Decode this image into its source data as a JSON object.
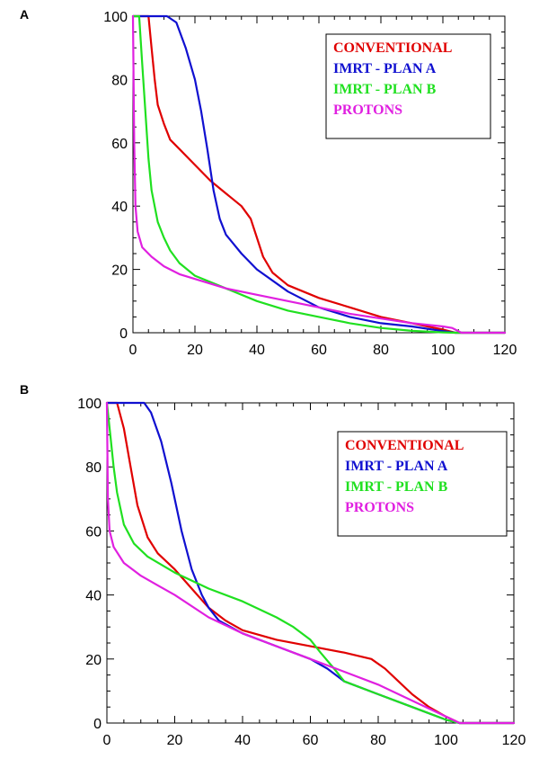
{
  "chart_data": [
    {
      "type": "line",
      "panel_label": "A",
      "xlim": [
        0,
        120
      ],
      "ylim": [
        0,
        100
      ],
      "x_ticks": [
        0,
        20,
        40,
        60,
        80,
        100,
        120
      ],
      "y_ticks": [
        0,
        20,
        40,
        60,
        80,
        100
      ],
      "x_tick_labels": [
        "0",
        "20",
        "40",
        "60",
        "80",
        "100",
        "120"
      ],
      "y_tick_labels": [
        "0",
        "20",
        "40",
        "60",
        "80",
        "100"
      ],
      "legend_position": "top-right",
      "series": [
        {
          "name": "CONVENTIONAL",
          "color": "#e00000",
          "points": [
            [
              0,
              100
            ],
            [
              5,
              100
            ],
            [
              6,
              90
            ],
            [
              7,
              80
            ],
            [
              8,
              72
            ],
            [
              10,
              66
            ],
            [
              12,
              61
            ],
            [
              15,
              58
            ],
            [
              20,
              53
            ],
            [
              25,
              48
            ],
            [
              30,
              44
            ],
            [
              35,
              40
            ],
            [
              38,
              36
            ],
            [
              40,
              30
            ],
            [
              42,
              24
            ],
            [
              45,
              19
            ],
            [
              50,
              15
            ],
            [
              60,
              11
            ],
            [
              70,
              8
            ],
            [
              80,
              5
            ],
            [
              90,
              3
            ],
            [
              100,
              1
            ],
            [
              104,
              0
            ],
            [
              120,
              0
            ]
          ]
        },
        {
          "name": "IMRT - PLAN A",
          "color": "#1010d0",
          "points": [
            [
              0,
              100
            ],
            [
              11,
              100
            ],
            [
              14,
              98
            ],
            [
              17,
              90
            ],
            [
              20,
              80
            ],
            [
              22,
              70
            ],
            [
              24,
              58
            ],
            [
              26,
              45
            ],
            [
              28,
              36
            ],
            [
              30,
              31
            ],
            [
              35,
              25
            ],
            [
              40,
              20
            ],
            [
              50,
              13
            ],
            [
              60,
              8
            ],
            [
              70,
              5
            ],
            [
              80,
              3
            ],
            [
              90,
              2
            ],
            [
              100,
              0.5
            ],
            [
              104,
              0
            ],
            [
              120,
              0
            ]
          ]
        },
        {
          "name": "IMRT - PLAN B",
          "color": "#20e020",
          "points": [
            [
              0,
              100
            ],
            [
              2,
              100
            ],
            [
              3,
              85
            ],
            [
              4,
              70
            ],
            [
              5,
              55
            ],
            [
              6,
              45
            ],
            [
              8,
              35
            ],
            [
              10,
              30
            ],
            [
              12,
              26
            ],
            [
              15,
              22
            ],
            [
              20,
              18
            ],
            [
              30,
              14
            ],
            [
              40,
              10
            ],
            [
              50,
              7
            ],
            [
              60,
              5
            ],
            [
              70,
              3
            ],
            [
              80,
              1.5
            ],
            [
              90,
              0.6
            ],
            [
              100,
              0.1
            ],
            [
              104,
              0
            ],
            [
              120,
              0
            ]
          ]
        },
        {
          "name": "PROTONS",
          "color": "#e020e0",
          "points": [
            [
              0,
              100
            ],
            [
              0.4,
              60
            ],
            [
              0.8,
              40
            ],
            [
              1.5,
              32
            ],
            [
              3,
              27
            ],
            [
              6,
              24
            ],
            [
              10,
              21
            ],
            [
              15,
              18.5
            ],
            [
              20,
              17
            ],
            [
              30,
              14
            ],
            [
              40,
              12
            ],
            [
              50,
              10
            ],
            [
              60,
              8
            ],
            [
              70,
              6
            ],
            [
              80,
              4.5
            ],
            [
              90,
              3
            ],
            [
              100,
              2
            ],
            [
              103,
              1.5
            ],
            [
              106,
              0
            ],
            [
              120,
              0
            ]
          ]
        }
      ]
    },
    {
      "type": "line",
      "panel_label": "B",
      "xlim": [
        0,
        120
      ],
      "ylim": [
        0,
        100
      ],
      "x_ticks": [
        0,
        20,
        40,
        60,
        80,
        100,
        120
      ],
      "y_ticks": [
        0,
        20,
        40,
        60,
        80,
        100
      ],
      "x_tick_labels": [
        "0",
        "20",
        "40",
        "60",
        "80",
        "100",
        "120"
      ],
      "y_tick_labels": [
        "0",
        "20",
        "40",
        "60",
        "80",
        "100"
      ],
      "legend_position": "top-right",
      "series": [
        {
          "name": "CONVENTIONAL",
          "color": "#e00000",
          "points": [
            [
              0,
              100
            ],
            [
              3,
              100
            ],
            [
              5,
              92
            ],
            [
              7,
              80
            ],
            [
              9,
              68
            ],
            [
              12,
              58
            ],
            [
              15,
              53
            ],
            [
              20,
              48
            ],
            [
              25,
              42
            ],
            [
              30,
              36
            ],
            [
              35,
              32
            ],
            [
              40,
              29
            ],
            [
              50,
              26
            ],
            [
              60,
              24
            ],
            [
              70,
              22
            ],
            [
              78,
              20
            ],
            [
              82,
              17
            ],
            [
              86,
              13
            ],
            [
              90,
              9
            ],
            [
              95,
              5
            ],
            [
              100,
              2
            ],
            [
              104,
              0
            ],
            [
              120,
              0
            ]
          ]
        },
        {
          "name": "IMRT - PLAN A",
          "color": "#1010d0",
          "points": [
            [
              0,
              100
            ],
            [
              11,
              100
            ],
            [
              13,
              97
            ],
            [
              16,
              88
            ],
            [
              19,
              75
            ],
            [
              22,
              60
            ],
            [
              25,
              48
            ],
            [
              28,
              40
            ],
            [
              30,
              36
            ],
            [
              33,
              32
            ],
            [
              40,
              28
            ],
            [
              50,
              24
            ],
            [
              60,
              20
            ],
            [
              65,
              17
            ],
            [
              70,
              13
            ],
            [
              80,
              9
            ],
            [
              90,
              5
            ],
            [
              100,
              1
            ],
            [
              104,
              0
            ],
            [
              120,
              0
            ]
          ]
        },
        {
          "name": "IMRT - PLAN B",
          "color": "#20e020",
          "points": [
            [
              0,
              100
            ],
            [
              1,
              90
            ],
            [
              2,
              80
            ],
            [
              3,
              72
            ],
            [
              5,
              62
            ],
            [
              8,
              56
            ],
            [
              12,
              52
            ],
            [
              20,
              47
            ],
            [
              30,
              42
            ],
            [
              40,
              38
            ],
            [
              50,
              33
            ],
            [
              55,
              30
            ],
            [
              60,
              26
            ],
            [
              63,
              22
            ],
            [
              67,
              17
            ],
            [
              70,
              13
            ],
            [
              80,
              9
            ],
            [
              90,
              5
            ],
            [
              100,
              1
            ],
            [
              104,
              0
            ],
            [
              120,
              0
            ]
          ]
        },
        {
          "name": "PROTONS",
          "color": "#e020e0",
          "points": [
            [
              0,
              100
            ],
            [
              0.3,
              70
            ],
            [
              0.8,
              60
            ],
            [
              2,
              55
            ],
            [
              5,
              50
            ],
            [
              10,
              46
            ],
            [
              15,
              43
            ],
            [
              20,
              40
            ],
            [
              30,
              33
            ],
            [
              40,
              28
            ],
            [
              50,
              24
            ],
            [
              60,
              20
            ],
            [
              70,
              16
            ],
            [
              80,
              12
            ],
            [
              90,
              7
            ],
            [
              98,
              3
            ],
            [
              104,
              0
            ],
            [
              120,
              0
            ]
          ]
        }
      ]
    }
  ]
}
